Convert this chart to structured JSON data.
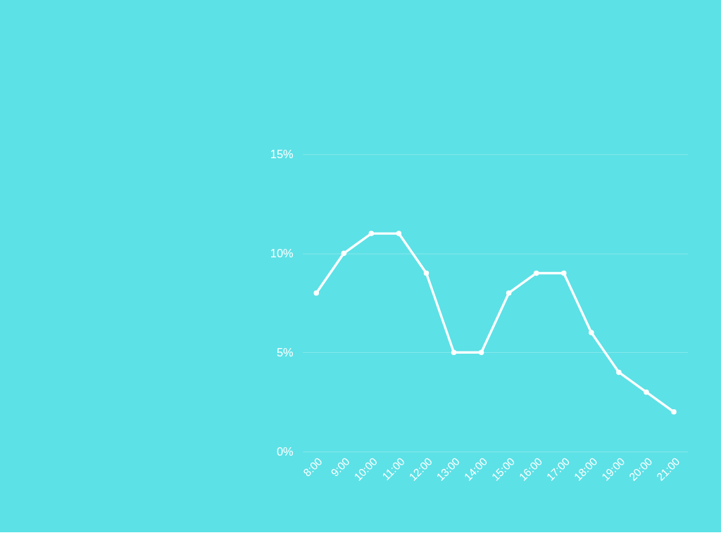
{
  "chart_data": {
    "type": "line",
    "categories": [
      "8:00",
      "9:00",
      "10:00",
      "11:00",
      "12:00",
      "13:00",
      "14:00",
      "15:00",
      "16:00",
      "17:00",
      "18:00",
      "19:00",
      "20:00",
      "21:00"
    ],
    "series": [
      {
        "color": "#ffffff",
        "values": [
          8,
          10,
          11,
          11,
          9,
          5,
          5,
          8,
          9,
          9,
          6,
          4,
          3,
          2
        ]
      }
    ],
    "ylim": [
      0,
      15
    ],
    "yticks": [
      {
        "value": 0,
        "label": "0%"
      },
      {
        "value": 5,
        "label": "5%"
      },
      {
        "value": 10,
        "label": "10%"
      },
      {
        "value": 15,
        "label": "15%"
      }
    ],
    "grid": "y",
    "marker": "circle",
    "line_style": "solid"
  }
}
